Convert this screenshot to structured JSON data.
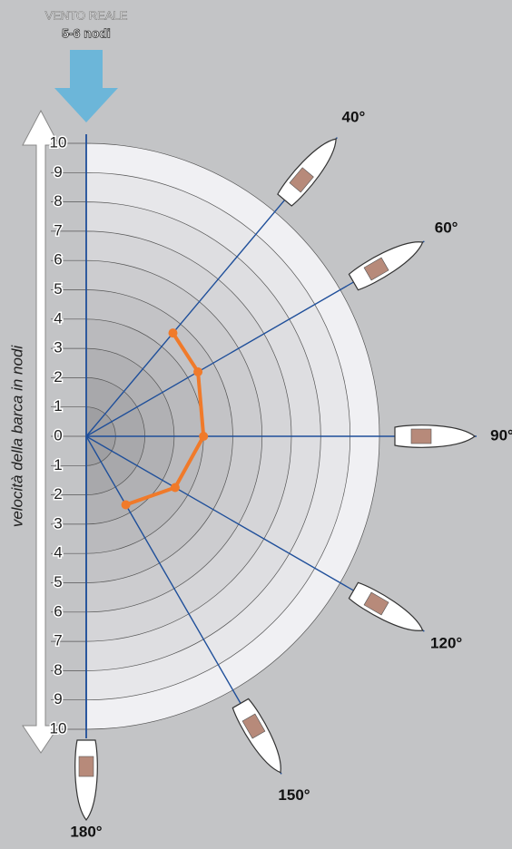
{
  "chart_data": {
    "type": "polar",
    "title": "VENTO REALE",
    "subtitle": "5-6 nodi",
    "axis_label": "velocità della barca in nodi",
    "rlim": [
      0,
      10
    ],
    "rticks": [
      0,
      1,
      2,
      3,
      4,
      5,
      6,
      7,
      8,
      9,
      10
    ],
    "thetaticks": [
      {
        "value": 40,
        "label": "40°"
      },
      {
        "value": 60,
        "label": "60°"
      },
      {
        "value": 90,
        "label": "90°"
      },
      {
        "value": 120,
        "label": "120°"
      },
      {
        "value": 150,
        "label": "150°"
      },
      {
        "value": 180,
        "label": "180°"
      }
    ],
    "series": [
      {
        "color": "#f07a2a",
        "theta": [
          40,
          60,
          90,
          120,
          150
        ],
        "r": [
          4.6,
          4.4,
          4.0,
          3.5,
          2.7
        ]
      }
    ]
  }
}
